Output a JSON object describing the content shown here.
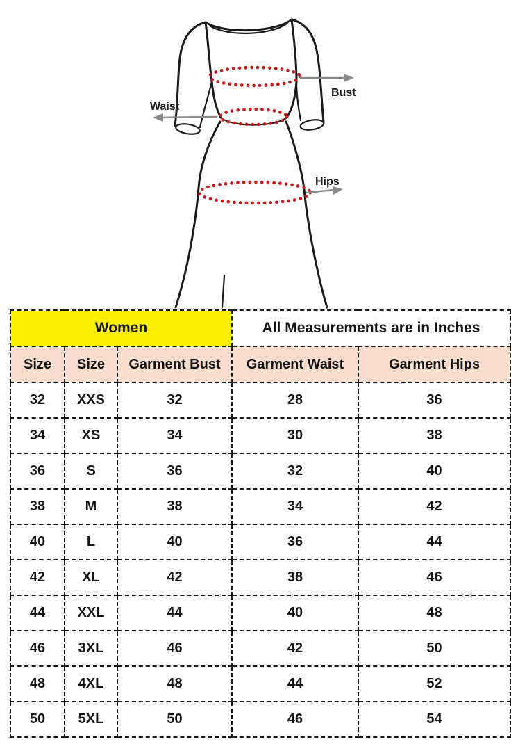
{
  "diagram": {
    "labels": {
      "bust": "Bust",
      "waist": "Waist",
      "hips": "Hips"
    },
    "colors": {
      "outline": "#1b1b1b",
      "measure_dots": "#c9191c",
      "arrow": "#8a8a8a"
    }
  },
  "table": {
    "group_headers": [
      {
        "label": "Women",
        "colspan": 3,
        "bg": "#fcf000"
      },
      {
        "label": "All Measurements are in Inches",
        "colspan": 2,
        "bg": "#ffffff"
      }
    ],
    "columns": [
      "Size",
      "Size",
      "Garment Bust",
      "Garment Waist",
      "Garment Hips"
    ],
    "rows": [
      [
        "32",
        "XXS",
        "32",
        "28",
        "36"
      ],
      [
        "34",
        "XS",
        "34",
        "30",
        "38"
      ],
      [
        "36",
        "S",
        "36",
        "32",
        "40"
      ],
      [
        "38",
        "M",
        "38",
        "34",
        "42"
      ],
      [
        "40",
        "L",
        "40",
        "36",
        "44"
      ],
      [
        "42",
        "XL",
        "42",
        "38",
        "46"
      ],
      [
        "44",
        "XXL",
        "44",
        "40",
        "48"
      ],
      [
        "46",
        "3XL",
        "46",
        "42",
        "50"
      ],
      [
        "48",
        "4XL",
        "48",
        "44",
        "52"
      ],
      [
        "50",
        "5XL",
        "50",
        "46",
        "54"
      ]
    ],
    "colors": {
      "women_bg": "#fcf000",
      "subheader_bg": "#f8dccd",
      "border": "#161616",
      "cell_bg": "#ffffff"
    }
  },
  "chart_data": {
    "type": "table",
    "title": "Women — All Measurements are in Inches",
    "columns": [
      "Size",
      "Size",
      "Garment Bust",
      "Garment Waist",
      "Garment Hips"
    ],
    "rows": [
      [
        32,
        "XXS",
        32,
        28,
        36
      ],
      [
        34,
        "XS",
        34,
        30,
        38
      ],
      [
        36,
        "S",
        36,
        32,
        40
      ],
      [
        38,
        "M",
        38,
        34,
        42
      ],
      [
        40,
        "L",
        40,
        36,
        44
      ],
      [
        42,
        "XL",
        42,
        38,
        46
      ],
      [
        44,
        "XXL",
        44,
        40,
        48
      ],
      [
        46,
        "3XL",
        46,
        42,
        50
      ],
      [
        48,
        "4XL",
        48,
        44,
        52
      ],
      [
        50,
        "5XL",
        50,
        46,
        54
      ]
    ]
  }
}
